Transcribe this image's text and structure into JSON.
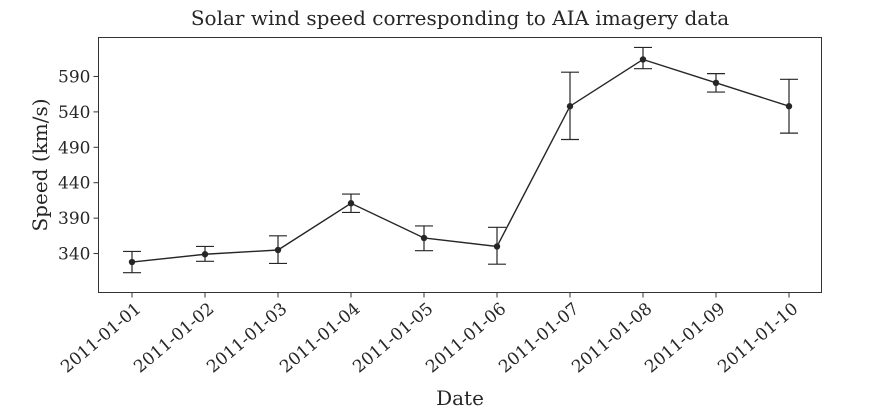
{
  "chart_data": {
    "type": "line",
    "title": "Solar wind speed corresponding to AIA imagery data",
    "xlabel": "Date",
    "ylabel": "Speed (km/s)",
    "x": [
      "2011-01-01",
      "2011-01-02",
      "2011-01-03",
      "2011-01-04",
      "2011-01-05",
      "2011-01-06",
      "2011-01-07",
      "2011-01-08",
      "2011-01-09",
      "2011-01-10"
    ],
    "series": [
      {
        "values": [
          328,
          339,
          345,
          411,
          362,
          350,
          548,
          614,
          581,
          548
        ],
        "err_low": [
          313,
          329,
          326,
          398,
          344,
          325,
          501,
          601,
          568,
          510
        ],
        "err_high": [
          343,
          350,
          365,
          424,
          379,
          377,
          596,
          631,
          594,
          586
        ]
      }
    ],
    "yticks": [
      340,
      390,
      440,
      490,
      540,
      590
    ],
    "ylim": [
      285,
      645
    ],
    "grid": false,
    "legend": false,
    "color": "#262626"
  }
}
